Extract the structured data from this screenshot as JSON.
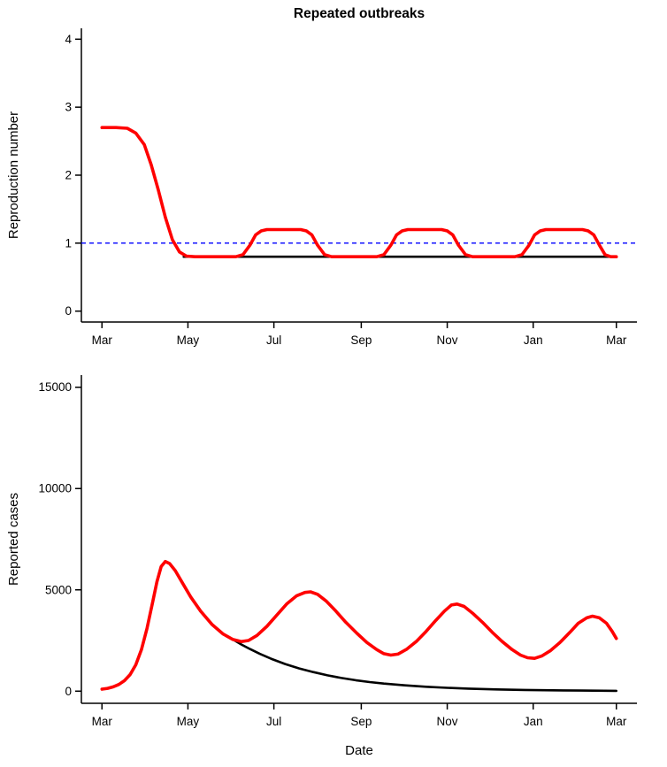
{
  "page": {
    "background": "#ffffff"
  },
  "chart_data": [
    {
      "id": "reproduction-number",
      "type": "line",
      "title": "Repeated outbreaks",
      "xlabel": "",
      "ylabel": "Reproduction number",
      "x_unit": "days from Mar 1",
      "xlim": [
        0,
        365
      ],
      "ylim": [
        0,
        4
      ],
      "yticks": [
        0,
        1,
        2,
        3,
        4
      ],
      "xticks": [
        {
          "day": 0,
          "label": "Mar"
        },
        {
          "day": 61,
          "label": "May"
        },
        {
          "day": 122,
          "label": "Jul"
        },
        {
          "day": 184,
          "label": "Sep"
        },
        {
          "day": 245,
          "label": "Nov"
        },
        {
          "day": 306,
          "label": "Jan"
        },
        {
          "day": 365,
          "label": "Mar"
        }
      ],
      "grid": false,
      "legend": null,
      "reference_lines": [
        {
          "name": "R-equals-1-threshold",
          "y": 1,
          "color": "#0000FF",
          "dash": true
        }
      ],
      "series": [
        {
          "name": "constant-control-R",
          "color": "#000000",
          "width": 2.6,
          "points": [
            [
              58,
              0.8
            ],
            [
              365,
              0.8
            ]
          ]
        },
        {
          "name": "repeated-outbreaks-R",
          "color": "#FF0000",
          "width": 3.6,
          "points": [
            [
              0,
              2.7
            ],
            [
              10,
              2.7
            ],
            [
              18,
              2.69
            ],
            [
              24,
              2.62
            ],
            [
              30,
              2.45
            ],
            [
              35,
              2.15
            ],
            [
              40,
              1.78
            ],
            [
              45,
              1.38
            ],
            [
              50,
              1.05
            ],
            [
              55,
              0.87
            ],
            [
              60,
              0.81
            ],
            [
              66,
              0.8
            ],
            [
              80,
              0.8
            ],
            [
              95,
              0.8
            ],
            [
              100,
              0.83
            ],
            [
              105,
              0.97
            ],
            [
              109,
              1.12
            ],
            [
              113,
              1.18
            ],
            [
              117,
              1.2
            ],
            [
              130,
              1.2
            ],
            [
              141,
              1.2
            ],
            [
              145,
              1.18
            ],
            [
              149,
              1.12
            ],
            [
              153,
              0.97
            ],
            [
              158,
              0.83
            ],
            [
              163,
              0.8
            ],
            [
              180,
              0.8
            ],
            [
              195,
              0.8
            ],
            [
              200,
              0.83
            ],
            [
              205,
              0.97
            ],
            [
              209,
              1.12
            ],
            [
              213,
              1.18
            ],
            [
              217,
              1.2
            ],
            [
              235,
              1.2
            ],
            [
              241,
              1.2
            ],
            [
              245,
              1.18
            ],
            [
              249,
              1.12
            ],
            [
              253,
              0.97
            ],
            [
              258,
              0.83
            ],
            [
              263,
              0.8
            ],
            [
              278,
              0.8
            ],
            [
              293,
              0.8
            ],
            [
              298,
              0.83
            ],
            [
              303,
              0.97
            ],
            [
              307,
              1.12
            ],
            [
              311,
              1.18
            ],
            [
              315,
              1.2
            ],
            [
              335,
              1.2
            ],
            [
              341,
              1.2
            ],
            [
              345,
              1.18
            ],
            [
              349,
              1.12
            ],
            [
              353,
              0.97
            ],
            [
              357,
              0.83
            ],
            [
              361,
              0.8
            ],
            [
              365,
              0.8
            ]
          ]
        }
      ]
    },
    {
      "id": "reported-cases",
      "type": "line",
      "title": "",
      "xlabel": "Date",
      "ylabel": "Reported cases",
      "x_unit": "days from Mar 1",
      "xlim": [
        0,
        365
      ],
      "ylim": [
        0,
        15000
      ],
      "yticks": [
        0,
        5000,
        10000,
        15000
      ],
      "xticks": [
        {
          "day": 0,
          "label": "Mar"
        },
        {
          "day": 61,
          "label": "May"
        },
        {
          "day": 122,
          "label": "Jul"
        },
        {
          "day": 184,
          "label": "Sep"
        },
        {
          "day": 245,
          "label": "Nov"
        },
        {
          "day": 306,
          "label": "Jan"
        },
        {
          "day": 365,
          "label": "Mar"
        }
      ],
      "grid": false,
      "legend": null,
      "reference_lines": [],
      "series": [
        {
          "name": "constant-control-cases",
          "color": "#000000",
          "width": 2.6,
          "points": [
            [
              0,
              100
            ],
            [
              4,
              140
            ],
            [
              8,
              210
            ],
            [
              12,
              330
            ],
            [
              16,
              520
            ],
            [
              20,
              820
            ],
            [
              24,
              1300
            ],
            [
              28,
              2050
            ],
            [
              32,
              3100
            ],
            [
              36,
              4400
            ],
            [
              39,
              5400
            ],
            [
              42,
              6150
            ],
            [
              45,
              6400
            ],
            [
              48,
              6300
            ],
            [
              52,
              5950
            ],
            [
              57,
              5350
            ],
            [
              63,
              4650
            ],
            [
              70,
              3950
            ],
            [
              78,
              3300
            ],
            [
              86,
              2820
            ],
            [
              93,
              2550
            ],
            [
              99,
              2300
            ],
            [
              105,
              2080
            ],
            [
              112,
              1840
            ],
            [
              120,
              1600
            ],
            [
              130,
              1340
            ],
            [
              140,
              1120
            ],
            [
              150,
              940
            ],
            [
              160,
              780
            ],
            [
              170,
              650
            ],
            [
              180,
              540
            ],
            [
              190,
              450
            ],
            [
              200,
              375
            ],
            [
              215,
              285
            ],
            [
              230,
              215
            ],
            [
              245,
              165
            ],
            [
              260,
              125
            ],
            [
              280,
              85
            ],
            [
              300,
              58
            ],
            [
              320,
              40
            ],
            [
              340,
              27
            ],
            [
              365,
              15
            ]
          ]
        },
        {
          "name": "repeated-outbreaks-cases",
          "color": "#FF0000",
          "width": 3.6,
          "points": [
            [
              0,
              100
            ],
            [
              4,
              140
            ],
            [
              8,
              210
            ],
            [
              12,
              330
            ],
            [
              16,
              520
            ],
            [
              20,
              820
            ],
            [
              24,
              1300
            ],
            [
              28,
              2050
            ],
            [
              32,
              3100
            ],
            [
              36,
              4400
            ],
            [
              39,
              5400
            ],
            [
              42,
              6150
            ],
            [
              45,
              6400
            ],
            [
              48,
              6300
            ],
            [
              52,
              5950
            ],
            [
              57,
              5350
            ],
            [
              63,
              4650
            ],
            [
              70,
              3950
            ],
            [
              78,
              3300
            ],
            [
              86,
              2820
            ],
            [
              93,
              2550
            ],
            [
              99,
              2450
            ],
            [
              104,
              2500
            ],
            [
              110,
              2750
            ],
            [
              117,
              3200
            ],
            [
              124,
              3750
            ],
            [
              131,
              4300
            ],
            [
              138,
              4700
            ],
            [
              144,
              4870
            ],
            [
              148,
              4900
            ],
            [
              153,
              4780
            ],
            [
              159,
              4450
            ],
            [
              166,
              3950
            ],
            [
              173,
              3400
            ],
            [
              181,
              2850
            ],
            [
              188,
              2400
            ],
            [
              195,
              2050
            ],
            [
              200,
              1850
            ],
            [
              205,
              1780
            ],
            [
              210,
              1830
            ],
            [
              216,
              2060
            ],
            [
              223,
              2450
            ],
            [
              230,
              2950
            ],
            [
              237,
              3500
            ],
            [
              243,
              3950
            ],
            [
              248,
              4250
            ],
            [
              252,
              4300
            ],
            [
              257,
              4180
            ],
            [
              263,
              3850
            ],
            [
              270,
              3400
            ],
            [
              277,
              2900
            ],
            [
              284,
              2450
            ],
            [
              291,
              2050
            ],
            [
              297,
              1780
            ],
            [
              302,
              1650
            ],
            [
              307,
              1620
            ],
            [
              312,
              1730
            ],
            [
              318,
              1990
            ],
            [
              325,
              2400
            ],
            [
              332,
              2900
            ],
            [
              338,
              3350
            ],
            [
              344,
              3620
            ],
            [
              348,
              3700
            ],
            [
              353,
              3620
            ],
            [
              358,
              3350
            ],
            [
              362,
              2950
            ],
            [
              365,
              2600
            ]
          ]
        }
      ]
    }
  ]
}
